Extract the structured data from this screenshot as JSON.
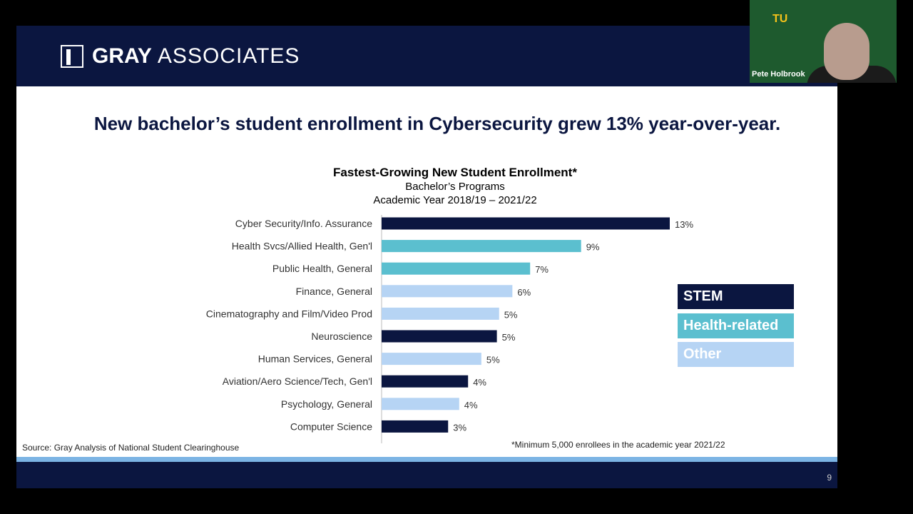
{
  "header": {
    "logo_bold": "GRAY",
    "logo_light": "ASSOCIATES"
  },
  "slide": {
    "title": "New bachelor’s student enrollment in Cybersecurity grew 13% year-over-year.",
    "source": "Source:  Gray Analysis of National Student Clearinghouse",
    "footnote": "*Minimum 5,000 enrollees in the academic year 2021/22",
    "page": "9"
  },
  "video": {
    "participant": "Pete Holbrook",
    "logo": "TU"
  },
  "chart_data": {
    "type": "bar",
    "orientation": "horizontal",
    "title": "Fastest-Growing New Student Enrollment*",
    "subtitle": "Bachelor’s Programs",
    "subtitle2": "Academic Year 2018/19 – 2021/22",
    "categories": [
      "Cyber Security/Info. Assurance",
      "Health Svcs/Allied Health, Gen'l",
      "Public Health, General",
      "Finance, General",
      "Cinematography and Film/Video Prod",
      "Neuroscience",
      "Human Services, General",
      "Aviation/Aero Science/Tech, Gen'l",
      "Psychology, General",
      "Computer Science"
    ],
    "values": [
      13,
      9,
      6.7,
      5.9,
      5.3,
      5.2,
      4.5,
      3.9,
      3.5,
      3.0
    ],
    "labels": [
      "13%",
      "9%",
      "7%",
      "6%",
      "5%",
      "5%",
      "5%",
      "4%",
      "4%",
      "3%"
    ],
    "groups": [
      "STEM",
      "Health-related",
      "Health-related",
      "Other",
      "Other",
      "STEM",
      "Other",
      "STEM",
      "Other",
      "STEM"
    ],
    "legend": [
      {
        "name": "STEM",
        "color": "#0b1640"
      },
      {
        "name": "Health-related",
        "color": "#5bbfcf"
      },
      {
        "name": "Other",
        "color": "#b6d4f4"
      }
    ],
    "legend_placement": "right",
    "grid": false,
    "xlim": [
      0,
      13
    ]
  }
}
